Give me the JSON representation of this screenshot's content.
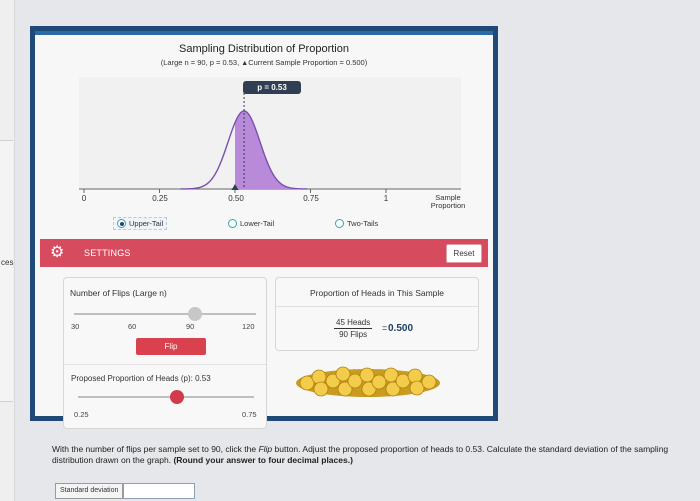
{
  "sidebar": {
    "fragment_text": "ces"
  },
  "chart": {
    "title": "Sampling Distribution of Proportion",
    "subtitle_prefix": "(Large n = 90, p = 0.53,",
    "subtitle_marker": "▲",
    "subtitle_suffix": "Current Sample Proportion = 0.500)",
    "p_badge": "p = 0.53",
    "x_ticks": [
      "0",
      "0.25",
      "0.50",
      "0.75",
      "1"
    ],
    "x_axis_label_line1": "Sample",
    "x_axis_label_line2": "Proportion",
    "colors": {
      "fill": "#b98ad9",
      "curve": "#7a4fb0",
      "marker": "#2f3e52"
    }
  },
  "chart_data": {
    "type": "area",
    "title": "Sampling Distribution of Proportion",
    "subtitle": "(Large n = 90, p = 0.53, ▲Current Sample Proportion = 0.500)",
    "xlabel": "Sample Proportion",
    "ylabel": "",
    "xlim": [
      0,
      1
    ],
    "x_ticks": [
      0,
      0.25,
      0.5,
      0.75,
      1
    ],
    "distribution": {
      "n": 90,
      "p": 0.53
    },
    "current_sample_proportion": 0.5,
    "shaded_tail": "upper"
  },
  "tail_options": {
    "selected": "Upper-Tail",
    "items": [
      {
        "label": "Upper-Tail"
      },
      {
        "label": "Lower-Tail"
      },
      {
        "label": "Two-Tails"
      }
    ]
  },
  "settings": {
    "label": "SETTINGS",
    "reset_label": "Reset",
    "accent": "#d74b5f"
  },
  "flips": {
    "label": "Number of Flips (Large n)",
    "ticks": [
      "30",
      "60",
      "90",
      "120"
    ],
    "value": 90,
    "min": 30,
    "max": 120,
    "flip_button": "Flip"
  },
  "proportion": {
    "label": "Proposed Proportion of Heads (p): 0.53",
    "min_label": "0.25",
    "max_label": "0.75",
    "value": 0.53,
    "min": 0.25,
    "max": 0.75
  },
  "result": {
    "title": "Proportion of Heads in This Sample",
    "numerator": "45 Heads",
    "denominator": "90 Flips",
    "equals": "=",
    "value": "0.500"
  },
  "instructions": {
    "text_before": "With the number of flips per sample set to 90, click the ",
    "flip_word": "Flip",
    "text_after": " button. Adjust the proposed proportion of heads to 0.53. Calculate the standard deviation of the sampling distribution drawn on the graph. ",
    "bold_text": "(Round your answer to four decimal places.)"
  },
  "answer": {
    "label": "Standard deviation",
    "value": ""
  }
}
